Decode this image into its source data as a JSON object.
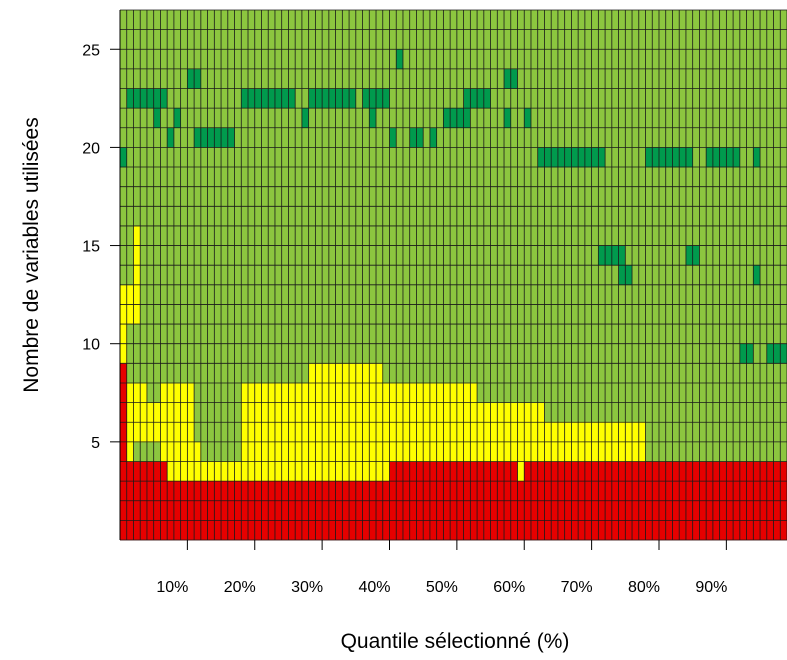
{
  "chart_data": {
    "type": "heatmap",
    "xlabel": "Quantile sélectionné (%)",
    "ylabel": "Nombre de variables utilisées",
    "x_ticks": [
      {
        "value": 10,
        "label": "10%"
      },
      {
        "value": 20,
        "label": "20%"
      },
      {
        "value": 30,
        "label": "30%"
      },
      {
        "value": 40,
        "label": "40%"
      },
      {
        "value": 50,
        "label": "50%"
      },
      {
        "value": 60,
        "label": "60%"
      },
      {
        "value": 70,
        "label": "70%"
      },
      {
        "value": 80,
        "label": "80%"
      },
      {
        "value": 90,
        "label": "90%"
      }
    ],
    "y_ticks": [
      {
        "value": 5,
        "label": "5"
      },
      {
        "value": 10,
        "label": "10"
      },
      {
        "value": 15,
        "label": "15"
      },
      {
        "value": 20,
        "label": "20"
      },
      {
        "value": 25,
        "label": "25"
      }
    ],
    "n_columns": 99,
    "n_rows": 27,
    "x_range": [
      1,
      99
    ],
    "y_range": [
      1,
      27
    ],
    "grid": true,
    "colors": {
      "red": "#e60000",
      "yellow": "#ffff00",
      "light_green": "#8cc63f",
      "dark_green": "#009a4d",
      "gridline": "#1a1a1a"
    },
    "categories": [
      "red",
      "yellow",
      "light_green",
      "dark_green"
    ],
    "regions": [
      {
        "color": "red",
        "x": [
          1,
          1
        ],
        "y": [
          1,
          9
        ]
      },
      {
        "color": "red",
        "x": [
          2,
          99
        ],
        "y": [
          1,
          4
        ]
      },
      {
        "color": "yellow",
        "x": [
          2,
          2
        ],
        "y": [
          5,
          5
        ]
      },
      {
        "color": "yellow",
        "x": [
          1,
          1
        ],
        "y": [
          10,
          13
        ]
      },
      {
        "color": "yellow",
        "x": [
          2,
          3
        ],
        "y": [
          12,
          13
        ]
      },
      {
        "color": "yellow",
        "x": [
          3,
          3
        ],
        "y": [
          14,
          16
        ]
      },
      {
        "color": "yellow",
        "x": [
          2,
          4
        ],
        "y": [
          6,
          8
        ]
      },
      {
        "color": "yellow",
        "x": [
          5,
          6
        ],
        "y": [
          6,
          7
        ]
      },
      {
        "color": "yellow",
        "x": [
          7,
          11
        ],
        "y": [
          6,
          8
        ]
      },
      {
        "color": "yellow",
        "x": [
          7,
          12
        ],
        "y": [
          5,
          5
        ]
      },
      {
        "color": "yellow",
        "x": [
          8,
          40
        ],
        "y": [
          4,
          4
        ]
      },
      {
        "color": "yellow",
        "x": [
          19,
          28
        ],
        "y": [
          5,
          8
        ]
      },
      {
        "color": "yellow",
        "x": [
          29,
          39
        ],
        "y": [
          5,
          9
        ]
      },
      {
        "color": "yellow",
        "x": [
          40,
          53
        ],
        "y": [
          5,
          8
        ]
      },
      {
        "color": "yellow",
        "x": [
          54,
          63
        ],
        "y": [
          5,
          7
        ]
      },
      {
        "color": "yellow",
        "x": [
          64,
          78
        ],
        "y": [
          5,
          6
        ]
      },
      {
        "color": "yellow",
        "x": [
          60,
          60
        ],
        "y": [
          4,
          4
        ]
      },
      {
        "color": "dark_green",
        "x": [
          2,
          5
        ],
        "y": [
          23,
          23
        ]
      },
      {
        "color": "dark_green",
        "x": [
          6,
          7
        ],
        "y": [
          23,
          23
        ]
      },
      {
        "color": "dark_green",
        "x": [
          11,
          12
        ],
        "y": [
          24,
          24
        ]
      },
      {
        "color": "dark_green",
        "x": [
          19,
          26
        ],
        "y": [
          23,
          23
        ]
      },
      {
        "color": "dark_green",
        "x": [
          29,
          35
        ],
        "y": [
          23,
          23
        ]
      },
      {
        "color": "dark_green",
        "x": [
          37,
          40
        ],
        "y": [
          23,
          23
        ]
      },
      {
        "color": "dark_green",
        "x": [
          42,
          42
        ],
        "y": [
          25,
          25
        ]
      },
      {
        "color": "dark_green",
        "x": [
          52,
          55
        ],
        "y": [
          23,
          23
        ]
      },
      {
        "color": "dark_green",
        "x": [
          58,
          59
        ],
        "y": [
          24,
          24
        ]
      },
      {
        "color": "dark_green",
        "x": [
          12,
          17
        ],
        "y": [
          21,
          21
        ]
      },
      {
        "color": "dark_green",
        "x": [
          6,
          6
        ],
        "y": [
          22,
          22
        ]
      },
      {
        "color": "dark_green",
        "x": [
          9,
          9
        ],
        "y": [
          22,
          22
        ]
      },
      {
        "color": "dark_green",
        "x": [
          28,
          28
        ],
        "y": [
          22,
          22
        ]
      },
      {
        "color": "dark_green",
        "x": [
          38,
          38
        ],
        "y": [
          22,
          22
        ]
      },
      {
        "color": "dark_green",
        "x": [
          49,
          52
        ],
        "y": [
          22,
          22
        ]
      },
      {
        "color": "dark_green",
        "x": [
          58,
          58
        ],
        "y": [
          22,
          22
        ]
      },
      {
        "color": "dark_green",
        "x": [
          61,
          61
        ],
        "y": [
          22,
          22
        ]
      },
      {
        "color": "dark_green",
        "x": [
          8,
          8
        ],
        "y": [
          21,
          21
        ]
      },
      {
        "color": "dark_green",
        "x": [
          41,
          41
        ],
        "y": [
          21,
          21
        ]
      },
      {
        "color": "dark_green",
        "x": [
          44,
          45
        ],
        "y": [
          21,
          21
        ]
      },
      {
        "color": "dark_green",
        "x": [
          47,
          47
        ],
        "y": [
          21,
          21
        ]
      },
      {
        "color": "dark_green",
        "x": [
          1,
          1
        ],
        "y": [
          20,
          20
        ]
      },
      {
        "color": "dark_green",
        "x": [
          63,
          72
        ],
        "y": [
          20,
          20
        ]
      },
      {
        "color": "dark_green",
        "x": [
          79,
          85
        ],
        "y": [
          20,
          20
        ]
      },
      {
        "color": "dark_green",
        "x": [
          88,
          92
        ],
        "y": [
          20,
          20
        ]
      },
      {
        "color": "dark_green",
        "x": [
          95,
          95
        ],
        "y": [
          20,
          20
        ]
      },
      {
        "color": "dark_green",
        "x": [
          72,
          75
        ],
        "y": [
          15,
          15
        ]
      },
      {
        "color": "dark_green",
        "x": [
          85,
          86
        ],
        "y": [
          15,
          15
        ]
      },
      {
        "color": "dark_green",
        "x": [
          75,
          76
        ],
        "y": [
          14,
          14
        ]
      },
      {
        "color": "dark_green",
        "x": [
          95,
          95
        ],
        "y": [
          14,
          14
        ]
      },
      {
        "color": "dark_green",
        "x": [
          93,
          94
        ],
        "y": [
          10,
          10
        ]
      },
      {
        "color": "dark_green",
        "x": [
          97,
          99
        ],
        "y": [
          10,
          10
        ]
      }
    ]
  }
}
